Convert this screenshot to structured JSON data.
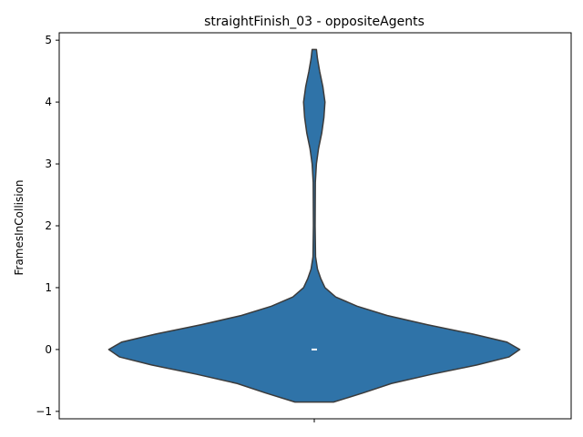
{
  "chart_data": {
    "type": "violin",
    "title": "straightFinish_03 - oppositeAgents",
    "xlabel": "",
    "ylabel": "FramesInCollision",
    "ylim": [
      -1.12,
      5.12
    ],
    "yticks": [
      -1,
      0,
      1,
      2,
      3,
      4,
      5
    ],
    "grid": false,
    "series": [
      {
        "color": "#2f73a8",
        "edge_color": "#3b3b3b",
        "median": 0,
        "range": [
          -0.85,
          4.85
        ],
        "density_profile": [
          {
            "y": -0.85,
            "half_width": 0.09
          },
          {
            "y": -0.7,
            "half_width": 0.23
          },
          {
            "y": -0.55,
            "half_width": 0.36
          },
          {
            "y": -0.4,
            "half_width": 0.55
          },
          {
            "y": -0.25,
            "half_width": 0.76
          },
          {
            "y": -0.12,
            "half_width": 0.91
          },
          {
            "y": 0.0,
            "half_width": 0.96
          },
          {
            "y": 0.12,
            "half_width": 0.9
          },
          {
            "y": 0.25,
            "half_width": 0.74
          },
          {
            "y": 0.4,
            "half_width": 0.53
          },
          {
            "y": 0.55,
            "half_width": 0.34
          },
          {
            "y": 0.7,
            "half_width": 0.2
          },
          {
            "y": 0.85,
            "half_width": 0.1
          },
          {
            "y": 1.0,
            "half_width": 0.05
          },
          {
            "y": 1.15,
            "half_width": 0.03
          },
          {
            "y": 1.3,
            "half_width": 0.015
          },
          {
            "y": 1.5,
            "half_width": 0.006
          },
          {
            "y": 2.0,
            "half_width": 0.004
          },
          {
            "y": 2.7,
            "half_width": 0.005
          },
          {
            "y": 3.0,
            "half_width": 0.01
          },
          {
            "y": 3.25,
            "half_width": 0.02
          },
          {
            "y": 3.5,
            "half_width": 0.035
          },
          {
            "y": 3.75,
            "half_width": 0.045
          },
          {
            "y": 4.0,
            "half_width": 0.05
          },
          {
            "y": 4.25,
            "half_width": 0.04
          },
          {
            "y": 4.5,
            "half_width": 0.025
          },
          {
            "y": 4.7,
            "half_width": 0.015
          },
          {
            "y": 4.85,
            "half_width": 0.01
          }
        ]
      }
    ]
  }
}
